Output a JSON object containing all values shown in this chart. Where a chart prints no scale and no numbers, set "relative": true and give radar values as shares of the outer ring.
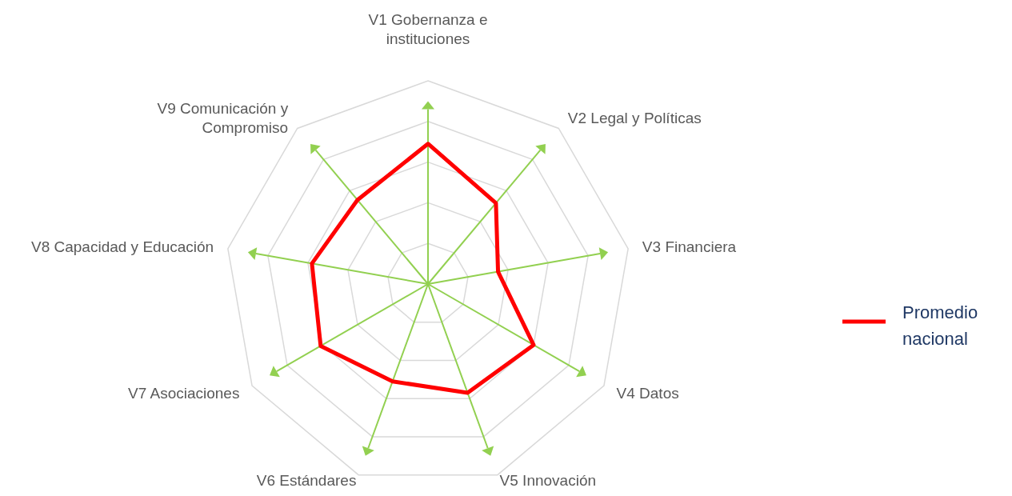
{
  "chart_data": {
    "type": "radar",
    "relative": true,
    "grid": true,
    "legend": "right",
    "categories": [
      "V1 Gobernanza e instituciones",
      "V2 Legal y Políticas",
      "V3 Financiera",
      "V4 Datos",
      "V5 Innovación",
      "V6 Estándares",
      "V7 Asociaciones",
      "V8 Capacidad y Educación",
      "V9 Comunicación y Compromiso"
    ],
    "series": [
      {
        "name": "Promedio nacional",
        "color": "#ff0000",
        "values": [
          0.69,
          0.52,
          0.35,
          0.6,
          0.57,
          0.51,
          0.61,
          0.58,
          0.54
        ]
      }
    ]
  }
}
